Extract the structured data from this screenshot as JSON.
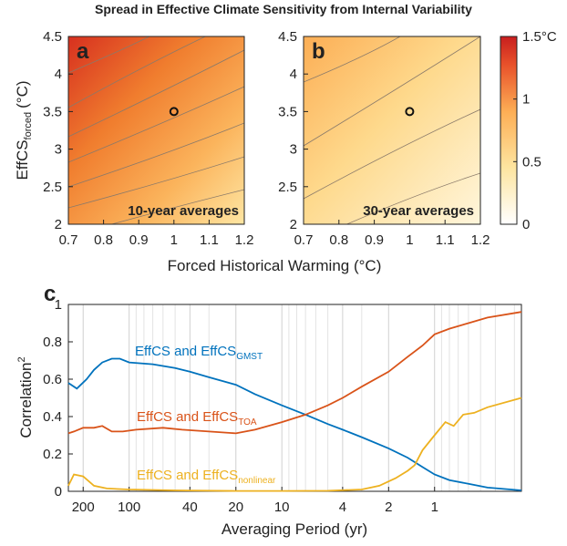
{
  "title": "Spread in Effective Climate Sensitivity from Internal Variability",
  "chart_data": [
    {
      "type": "contour",
      "panel": "a",
      "annotation": "10-year averages",
      "xlim": [
        0.7,
        1.2
      ],
      "xticks": [
        0.7,
        0.8,
        0.9,
        1,
        1.1,
        1.2
      ],
      "ylim": [
        2,
        4.5
      ],
      "yticks": [
        2,
        2.5,
        3,
        3.5,
        4,
        4.5
      ],
      "point": {
        "x": 1,
        "y": 3.5
      },
      "ylabel": "EffCS",
      "ylabel_subscript": "forced",
      "ylabel_unit": "(°C)",
      "xlabel": "Forced Historical Warming (°C)"
    },
    {
      "type": "contour",
      "panel": "b",
      "annotation": "30-year averages",
      "xlim": [
        0.7,
        1.2
      ],
      "xticks": [
        0.7,
        0.8,
        0.9,
        1,
        1.1,
        1.2
      ],
      "ylim": [
        2,
        4.5
      ],
      "yticks": [
        2,
        2.5,
        3,
        3.5,
        4,
        4.5
      ],
      "point": {
        "x": 1,
        "y": 3.5
      }
    },
    {
      "type": "colorbar",
      "clim": [
        0,
        1.5
      ],
      "ticks": [
        0,
        0.5,
        1,
        {
          "value": 1.5,
          "label": "1.5°C"
        }
      ]
    },
    {
      "type": "line",
      "panel": "c",
      "xscale": "log",
      "xgrid": true,
      "xlim": [
        250,
        0.27
      ],
      "xticks": [
        200,
        100,
        40,
        20,
        10,
        4,
        2,
        1
      ],
      "xminorticks": [
        90,
        80,
        70,
        60,
        50,
        30,
        9,
        8,
        7,
        6,
        5,
        3,
        0.9,
        0.8,
        0.7,
        0.6,
        0.5,
        0.4,
        0.3
      ],
      "ylim": [
        0,
        1
      ],
      "yticks": [
        0,
        0.2,
        0.4,
        0.6,
        0.8,
        1
      ],
      "ylabel": "Correlation",
      "ylabel_superscript": "2",
      "xlabel": "Averaging Period (yr)",
      "series": [
        {
          "name": "EffCS and EffCS",
          "name_subscript": "GMST",
          "color": "#0072bd",
          "x": [
            250,
            220,
            190,
            170,
            150,
            130,
            115,
            100,
            70,
            50,
            40,
            30,
            20,
            15,
            10,
            7,
            5,
            4,
            3,
            2,
            1.5,
            1.2,
            1,
            0.8,
            0.6,
            0.45,
            0.27
          ],
          "values": [
            0.58,
            0.55,
            0.6,
            0.65,
            0.69,
            0.71,
            0.71,
            0.69,
            0.68,
            0.66,
            0.64,
            0.61,
            0.57,
            0.52,
            0.46,
            0.41,
            0.36,
            0.33,
            0.29,
            0.23,
            0.18,
            0.13,
            0.09,
            0.06,
            0.04,
            0.02,
            0.005
          ]
        },
        {
          "name": "EffCS and EffCS",
          "name_subscript": "TOA",
          "color": "#d95319",
          "x": [
            250,
            230,
            200,
            170,
            150,
            130,
            110,
            90,
            60,
            45,
            30,
            20,
            15,
            10,
            7,
            5,
            4,
            3,
            2,
            1.5,
            1.2,
            1,
            0.8,
            0.6,
            0.45,
            0.27
          ],
          "values": [
            0.31,
            0.32,
            0.34,
            0.34,
            0.35,
            0.32,
            0.32,
            0.33,
            0.34,
            0.33,
            0.32,
            0.31,
            0.33,
            0.37,
            0.41,
            0.46,
            0.5,
            0.56,
            0.64,
            0.72,
            0.78,
            0.84,
            0.87,
            0.9,
            0.93,
            0.96
          ]
        },
        {
          "name": "EffCS and EffCS",
          "name_subscript": "nonlinear",
          "color": "#edb120",
          "x": [
            250,
            230,
            200,
            170,
            140,
            100,
            50,
            20,
            10,
            5,
            3,
            2.3,
            1.8,
            1.5,
            1.35,
            1.2,
            1,
            0.85,
            0.75,
            0.65,
            0.55,
            0.45,
            0.27
          ],
          "values": [
            0.03,
            0.09,
            0.08,
            0.03,
            0.015,
            0.01,
            0.005,
            0.002,
            0.002,
            0.003,
            0.01,
            0.03,
            0.07,
            0.11,
            0.14,
            0.22,
            0.3,
            0.37,
            0.35,
            0.41,
            0.42,
            0.45,
            0.5
          ]
        }
      ]
    }
  ]
}
